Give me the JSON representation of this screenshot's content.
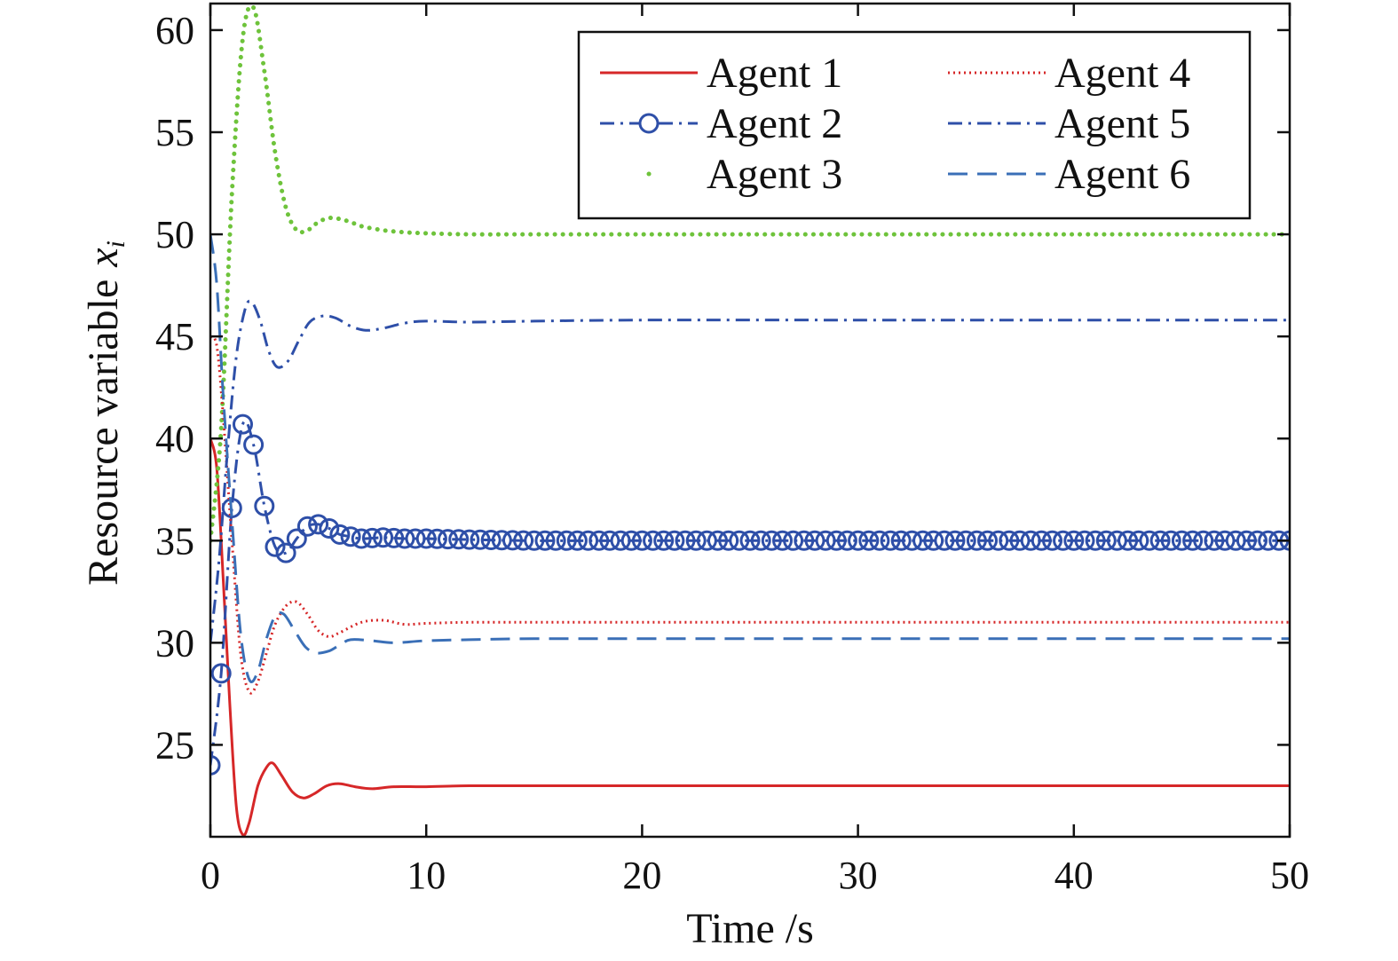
{
  "chart_data": {
    "type": "line",
    "xlabel": "Time /s",
    "ylabel": "Resource variable",
    "ylabel_var": "x",
    "ylabel_sub": "i",
    "xlim": [
      0,
      50
    ],
    "ylim": [
      20.5,
      61.3
    ],
    "xticks": [
      0,
      10,
      20,
      30,
      40,
      50
    ],
    "yticks": [
      25,
      30,
      35,
      40,
      45,
      50,
      55,
      60
    ],
    "grid": false,
    "legend_position": "top-right",
    "series": [
      {
        "name": "Agent 1",
        "color": "#d62728",
        "style": "solid",
        "marker": "none",
        "points": [
          [
            0,
            40
          ],
          [
            0.3,
            38.5
          ],
          [
            0.6,
            33
          ],
          [
            0.9,
            27
          ],
          [
            1.2,
            22
          ],
          [
            1.5,
            20.6
          ],
          [
            1.8,
            21.2
          ],
          [
            2.2,
            23
          ],
          [
            2.6,
            23.9
          ],
          [
            2.9,
            24.1
          ],
          [
            3.3,
            23.5
          ],
          [
            3.8,
            22.7
          ],
          [
            4.3,
            22.4
          ],
          [
            4.8,
            22.6
          ],
          [
            5.4,
            23.0
          ],
          [
            6.0,
            23.1
          ],
          [
            6.7,
            22.95
          ],
          [
            7.5,
            22.85
          ],
          [
            8.5,
            22.95
          ],
          [
            10,
            22.95
          ],
          [
            12,
            23.0
          ],
          [
            15,
            23.0
          ],
          [
            20,
            23.0
          ],
          [
            30,
            23.0
          ],
          [
            40,
            23.0
          ],
          [
            50,
            23.0
          ]
        ]
      },
      {
        "name": "Agent 2",
        "color": "#2e4fa8",
        "style": "dashdot",
        "marker": "circle",
        "points": [
          [
            0,
            24
          ],
          [
            0.5,
            28.5
          ],
          [
            1.0,
            36.6
          ],
          [
            1.5,
            40.7
          ],
          [
            2.0,
            39.7
          ],
          [
            2.5,
            36.7
          ],
          [
            3.0,
            34.7
          ],
          [
            3.5,
            34.4
          ],
          [
            4.0,
            35.1
          ],
          [
            4.5,
            35.7
          ],
          [
            5.0,
            35.8
          ],
          [
            5.5,
            35.6
          ],
          [
            6.0,
            35.3
          ],
          [
            6.5,
            35.2
          ],
          [
            7.0,
            35.1
          ],
          [
            8.0,
            35.15
          ],
          [
            9.0,
            35.1
          ],
          [
            10,
            35.1
          ],
          [
            12,
            35.05
          ],
          [
            15,
            35.0
          ],
          [
            20,
            35.0
          ],
          [
            30,
            35.0
          ],
          [
            40,
            35.0
          ],
          [
            50,
            35.0
          ]
        ]
      },
      {
        "name": "Agent 3",
        "color": "#6ec33b",
        "style": "dotted",
        "marker": "none",
        "points": [
          [
            0,
            35
          ],
          [
            0.5,
            40.5
          ],
          [
            1.0,
            52
          ],
          [
            1.5,
            59.6
          ],
          [
            2.0,
            61.1
          ],
          [
            2.5,
            58
          ],
          [
            3.0,
            54
          ],
          [
            3.5,
            51.3
          ],
          [
            4.0,
            50.2
          ],
          [
            4.5,
            50.2
          ],
          [
            5.0,
            50.6
          ],
          [
            5.5,
            50.8
          ],
          [
            6.0,
            50.75
          ],
          [
            6.5,
            50.6
          ],
          [
            7.0,
            50.4
          ],
          [
            8.0,
            50.2
          ],
          [
            9.0,
            50.1
          ],
          [
            10,
            50.05
          ],
          [
            12,
            50.0
          ],
          [
            15,
            50.0
          ],
          [
            20,
            50.0
          ],
          [
            30,
            50.0
          ],
          [
            40,
            50.0
          ],
          [
            50,
            50.0
          ]
        ]
      },
      {
        "name": "Agent 4",
        "color": "#d62728",
        "style": "dotted-fine",
        "marker": "none",
        "points": [
          [
            0,
            45
          ],
          [
            0.3,
            44.5
          ],
          [
            0.6,
            41
          ],
          [
            1.0,
            35
          ],
          [
            1.4,
            29.5
          ],
          [
            1.8,
            27.6
          ],
          [
            2.2,
            28.1
          ],
          [
            2.6,
            29.5
          ],
          [
            3.0,
            30.9
          ],
          [
            3.5,
            31.8
          ],
          [
            4.0,
            32.0
          ],
          [
            4.5,
            31.4
          ],
          [
            5.0,
            30.6
          ],
          [
            5.5,
            30.3
          ],
          [
            6.0,
            30.5
          ],
          [
            7.0,
            31.0
          ],
          [
            8.0,
            31.1
          ],
          [
            9.0,
            30.9
          ],
          [
            10,
            30.95
          ],
          [
            12,
            31.0
          ],
          [
            15,
            31.0
          ],
          [
            20,
            31.0
          ],
          [
            30,
            31.0
          ],
          [
            40,
            31.0
          ],
          [
            50,
            31.0
          ]
        ]
      },
      {
        "name": "Agent 5",
        "color": "#2e4fa8",
        "style": "dashdot",
        "marker": "none",
        "points": [
          [
            0,
            30
          ],
          [
            0.4,
            34
          ],
          [
            0.8,
            39.5
          ],
          [
            1.2,
            44
          ],
          [
            1.6,
            46.3
          ],
          [
            1.9,
            46.7
          ],
          [
            2.3,
            45.8
          ],
          [
            2.7,
            44.3
          ],
          [
            3.1,
            43.5
          ],
          [
            3.6,
            43.8
          ],
          [
            4.1,
            44.8
          ],
          [
            4.6,
            45.7
          ],
          [
            5.2,
            46.0
          ],
          [
            5.8,
            45.9
          ],
          [
            6.5,
            45.5
          ],
          [
            7.2,
            45.3
          ],
          [
            8.0,
            45.4
          ],
          [
            9.0,
            45.65
          ],
          [
            10,
            45.75
          ],
          [
            12,
            45.7
          ],
          [
            15,
            45.75
          ],
          [
            20,
            45.8
          ],
          [
            30,
            45.8
          ],
          [
            40,
            45.8
          ],
          [
            50,
            45.8
          ]
        ]
      },
      {
        "name": "Agent 6",
        "color": "#3a6fb7",
        "style": "dashed",
        "marker": "none",
        "points": [
          [
            0,
            50
          ],
          [
            0.3,
            47.5
          ],
          [
            0.6,
            42
          ],
          [
            1.0,
            36
          ],
          [
            1.4,
            30.5
          ],
          [
            1.8,
            28.2
          ],
          [
            2.2,
            28.6
          ],
          [
            2.6,
            30.2
          ],
          [
            3.0,
            31.3
          ],
          [
            3.4,
            31.4
          ],
          [
            3.9,
            30.6
          ],
          [
            4.4,
            29.8
          ],
          [
            4.9,
            29.5
          ],
          [
            5.5,
            29.6
          ],
          [
            6.0,
            29.9
          ],
          [
            6.5,
            30.15
          ],
          [
            7.5,
            30.1
          ],
          [
            8.5,
            30.0
          ],
          [
            10,
            30.1
          ],
          [
            12,
            30.15
          ],
          [
            15,
            30.2
          ],
          [
            20,
            30.2
          ],
          [
            30,
            30.2
          ],
          [
            40,
            30.2
          ],
          [
            50,
            30.2
          ]
        ]
      }
    ]
  }
}
